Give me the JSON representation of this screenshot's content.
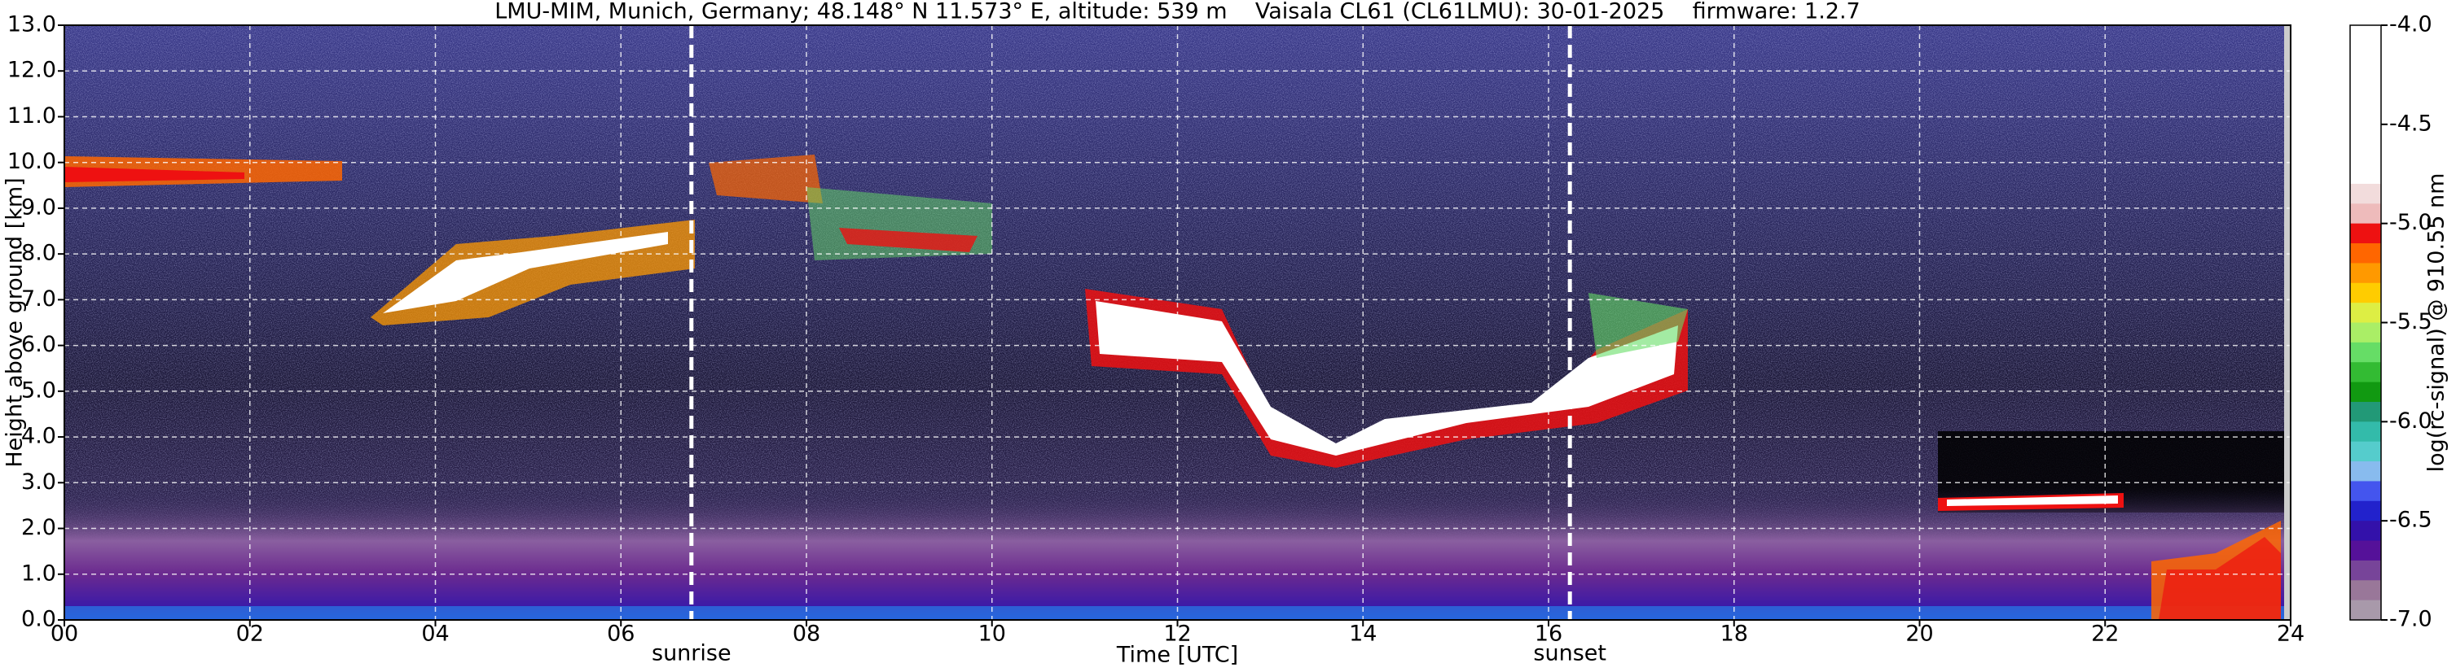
{
  "chart_data": {
    "type": "heatmap",
    "title": "LMU-MIM, Munich, Germany; 48.148° N 11.573° E, altitude: 539 m    Vaisala CL61 (CL61LMU): 30-01-2025    firmware: 1.2.7",
    "xlabel": "Time [UTC]",
    "ylabel": "Height above ground [km]",
    "xlim": [
      0,
      24
    ],
    "xticks": [
      {
        "value": 0,
        "label": "00"
      },
      {
        "value": 2,
        "label": "02"
      },
      {
        "value": 4,
        "label": "04"
      },
      {
        "value": 6,
        "label": "06"
      },
      {
        "value": 8,
        "label": "08"
      },
      10,
      12,
      14,
      16,
      18,
      20,
      22,
      24
    ],
    "ylim": [
      0,
      13
    ],
    "yticks": [
      {
        "value": 0,
        "label": "0.0"
      },
      {
        "value": 1,
        "label": "1.0"
      },
      {
        "value": 2,
        "label": "2.0"
      },
      {
        "value": 3,
        "label": "3.0"
      },
      {
        "value": 4,
        "label": "4.0"
      },
      {
        "value": 5,
        "label": "5.0"
      },
      {
        "value": 6,
        "label": "6.0"
      },
      {
        "value": 7,
        "label": "7.0"
      },
      {
        "value": 8,
        "label": "8.0"
      },
      {
        "value": 9,
        "label": "9.0"
      },
      {
        "value": 10,
        "label": "10.0"
      },
      {
        "value": 11,
        "label": "11.0"
      },
      {
        "value": 12,
        "label": "12.0"
      },
      {
        "value": 13,
        "label": "13.0"
      }
    ],
    "grid": true,
    "annotations": [
      {
        "text": "sunrise",
        "x": 6.76
      },
      {
        "text": "sunset",
        "x": 16.23
      }
    ],
    "colorbar": {
      "label": "log(rc-signal) @ 910.55 nm",
      "lim": [
        -7,
        -4
      ],
      "ticks": [
        {
          "value": -4,
          "label": "-4.0"
        },
        -4.5,
        {
          "value": -5,
          "label": "-5.0"
        },
        -5.5,
        {
          "value": -6,
          "label": "-6.0"
        },
        -6.5,
        {
          "value": -7,
          "label": "-7.0"
        }
      ],
      "colors": [
        "#ffffff",
        "#ffffff",
        "#ffffff",
        "#ffffff",
        "#ffffff",
        "#ffffff",
        "#ffffff",
        "#ffffff",
        "#f2dcdc",
        "#eebbbb",
        "#ee1111",
        "#ff6600",
        "#ff9900",
        "#ffcc00",
        "#ddee44",
        "#aaee66",
        "#66dd66",
        "#33bb33",
        "#119911",
        "#229977",
        "#33bbaa",
        "#55cccc",
        "#88bbee",
        "#4455ee",
        "#2222cc",
        "#3311aa",
        "#551199",
        "#774499",
        "#997799",
        "#a899aa"
      ]
    }
  }
}
